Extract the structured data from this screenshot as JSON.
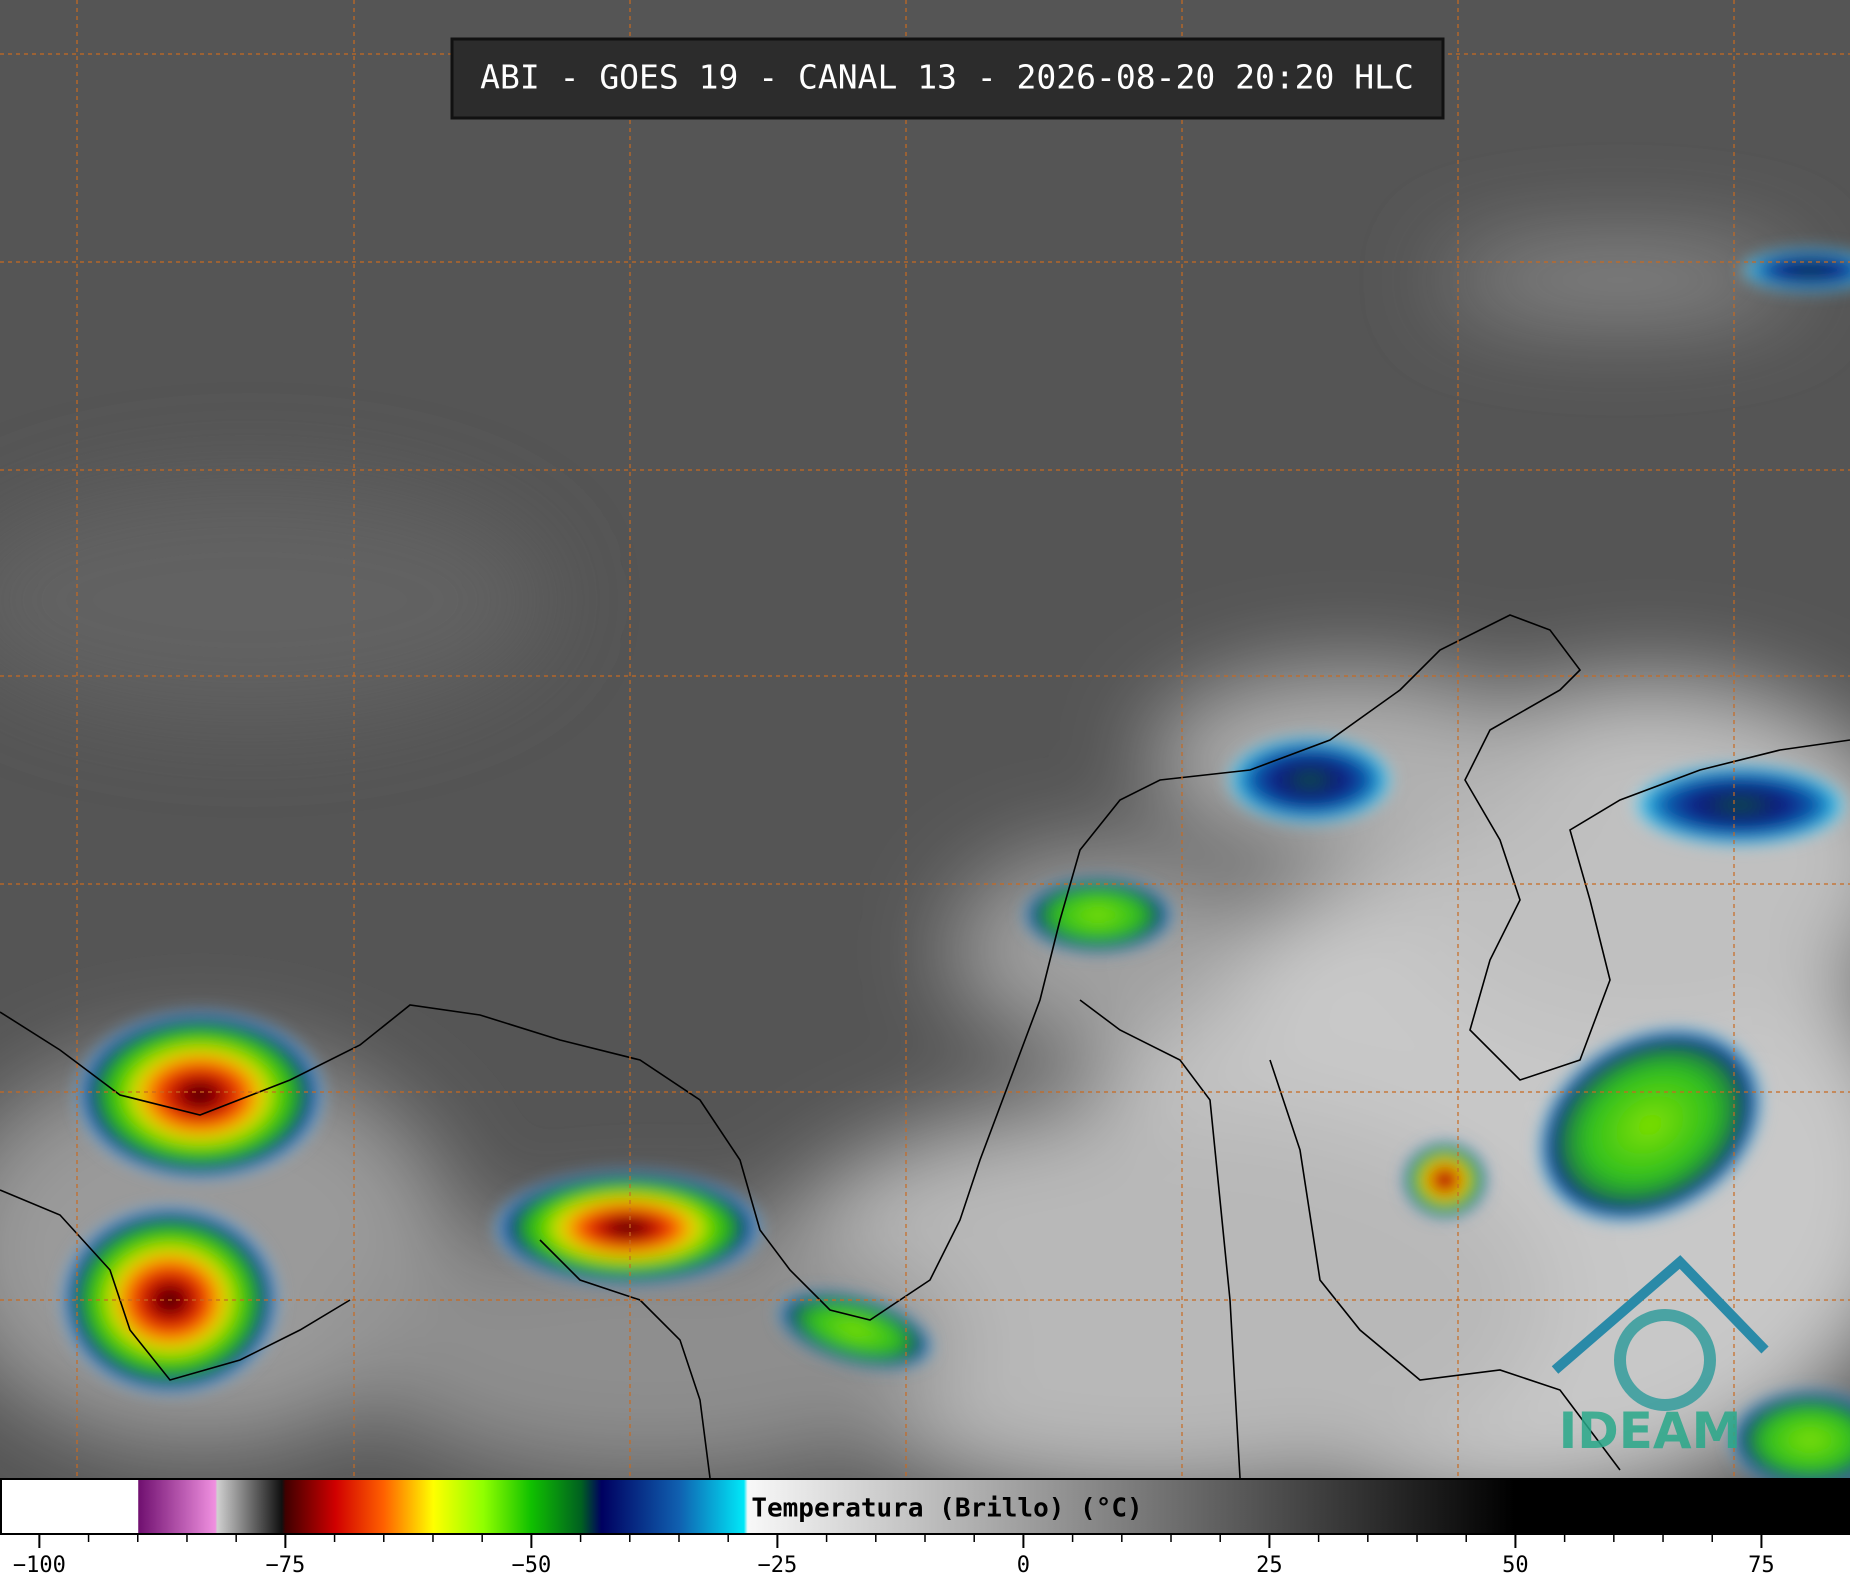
{
  "header": {
    "title": "ABI - GOES 19 - CANAL 13 - 2026-08-20 20:20 HLC"
  },
  "colorbar": {
    "label": "Temperatura (Brillo) (°C)",
    "lim": [
      -104,
      84
    ],
    "ticks": [
      {
        "value": -100,
        "label": "−100"
      },
      {
        "value": -75,
        "label": "−75"
      },
      {
        "value": -50,
        "label": "−50"
      },
      {
        "value": -25,
        "label": "−25"
      },
      0,
      25,
      50,
      75
    ]
  },
  "logo": {
    "text": "IDEAM"
  }
}
